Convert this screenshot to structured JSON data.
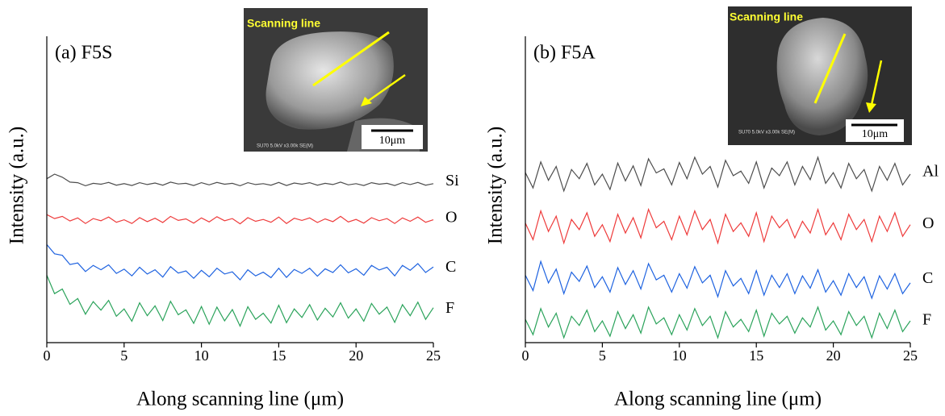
{
  "chart_data": [
    {
      "type": "line",
      "title": "(a) F5S",
      "xlabel": "Along scanning line (μm)",
      "ylabel": "Intensity (a.u.)",
      "xlim": [
        0,
        25
      ],
      "xticks": [
        0,
        5,
        10,
        15,
        20,
        25
      ],
      "ylim": [
        0,
        100
      ],
      "inset": {
        "title": "Scanning line",
        "scale_bar": "10μm",
        "caption": "SU70 5.0kV x3.00k SE(M)"
      },
      "x": [
        0,
        0.5,
        1,
        1.5,
        2,
        2.5,
        3,
        3.5,
        4,
        4.5,
        5,
        5.5,
        6,
        6.5,
        7,
        7.5,
        8,
        8.5,
        9,
        9.5,
        10,
        10.5,
        11,
        11.5,
        12,
        12.5,
        13,
        13.5,
        14,
        14.5,
        15,
        15.5,
        16,
        16.5,
        17,
        17.5,
        18,
        18.5,
        19,
        19.5,
        20,
        20.5,
        21,
        21.5,
        22,
        22.5,
        23,
        23.5,
        24,
        24.5,
        25
      ],
      "series": [
        {
          "name": "Si",
          "color": "#4d4d4d",
          "values": [
            53.5,
            55,
            54,
            52.4,
            52.2,
            51.2,
            52,
            51.7,
            52.3,
            51.4,
            51.9,
            51.3,
            52.2,
            51.6,
            52.1,
            51.4,
            52.4,
            51.8,
            52,
            51.3,
            52.2,
            51.5,
            52.3,
            51.7,
            52,
            51.2,
            52.2,
            51.6,
            51.9,
            51.4,
            52.3,
            51.3,
            52.1,
            51.7,
            52.2,
            51.4,
            52,
            51.6,
            52.4,
            51.5,
            51.9,
            51.3,
            52.2,
            51.7,
            52,
            51.3,
            52.2,
            51.6,
            52.3,
            51.4,
            51.9
          ]
        },
        {
          "name": "O",
          "color": "#ee3b3b",
          "values": [
            41.8,
            40.5,
            41.2,
            39.7,
            40.7,
            38.9,
            40.5,
            39.8,
            41,
            39.3,
            40.1,
            38.9,
            40.8,
            39.5,
            40.6,
            39.2,
            41.2,
            39.9,
            40.4,
            39,
            40.7,
            39.4,
            41.1,
            39.8,
            40.5,
            38.8,
            40.8,
            39.6,
            40.2,
            39.3,
            41,
            38.9,
            40.6,
            39.9,
            40.7,
            39.2,
            40.4,
            39.5,
            41.2,
            39.4,
            40.2,
            39,
            40.8,
            39.8,
            40.5,
            38.9,
            40.7,
            39.6,
            41,
            39.3,
            40.1
          ]
        },
        {
          "name": "C",
          "color": "#1f63e0",
          "values": [
            32,
            29,
            28.5,
            25.5,
            26,
            23.2,
            25.2,
            23.8,
            25.4,
            22.6,
            24,
            21.8,
            24.6,
            22.4,
            23.8,
            21.4,
            24.8,
            22.7,
            23.4,
            21,
            23.6,
            21.5,
            24.3,
            22.4,
            23.1,
            20.5,
            23.8,
            21.8,
            23,
            21.2,
            24.3,
            21.3,
            23.9,
            22.6,
            24.3,
            21.7,
            24.1,
            22.9,
            25.4,
            22.8,
            24.1,
            22,
            25.2,
            23.7,
            24.6,
            21.8,
            25.2,
            23.6,
            25.8,
            22.9,
            24.7
          ]
        },
        {
          "name": "F",
          "color": "#2ba35b",
          "values": [
            22,
            16,
            17.5,
            12.5,
            14.4,
            9.3,
            13.4,
            10.6,
            13.8,
            8.6,
            11,
            7,
            13,
            8.8,
            12,
            7.2,
            13.5,
            9.1,
            10.7,
            6.3,
            11.8,
            6,
            11.6,
            7.1,
            10.8,
            5.4,
            11.7,
            7.6,
            9.6,
            6.4,
            12.2,
            6.5,
            11,
            8.2,
            12.4,
            7.4,
            11.2,
            8.4,
            13,
            8,
            11,
            7,
            12.8,
            9.3,
            11.6,
            6.6,
            12.4,
            8.8,
            13.2,
            7.6,
            11.4
          ]
        }
      ]
    },
    {
      "type": "line",
      "title": "(b) F5A",
      "xlabel": "Along scanning line (μm)",
      "ylabel": "Intensity (a.u.)",
      "xlim": [
        0,
        25
      ],
      "xticks": [
        0,
        5,
        10,
        15,
        20,
        25
      ],
      "ylim": [
        0,
        100
      ],
      "inset": {
        "title": "Scanning line",
        "scale_bar": "10μm",
        "caption": "SU70 5.0kV x3.00k SE(M)"
      },
      "x": [
        0,
        0.5,
        1,
        1.5,
        2,
        2.5,
        3,
        3.5,
        4,
        4.5,
        5,
        5.5,
        6,
        6.5,
        7,
        7.5,
        8,
        8.5,
        9,
        9.5,
        10,
        10.5,
        11,
        11.5,
        12,
        12.5,
        13,
        13.5,
        14,
        14.5,
        15,
        15.5,
        16,
        16.5,
        17,
        17.5,
        18,
        18.5,
        19,
        19.5,
        20,
        20.5,
        21,
        21.5,
        22,
        22.5,
        23,
        23.5,
        24,
        24.5,
        25
      ],
      "series": [
        {
          "name": "Al",
          "color": "#4d4d4d",
          "values": [
            55.5,
            50.5,
            59,
            53,
            57.5,
            49.5,
            56.5,
            53.5,
            58.5,
            51.5,
            55,
            50,
            58.6,
            52.8,
            57.7,
            51.3,
            60,
            55.4,
            56.7,
            51.5,
            58.8,
            53.5,
            60.5,
            55,
            57.5,
            50.8,
            59.5,
            54.5,
            56,
            52,
            59,
            50.5,
            57,
            54.5,
            59,
            51.5,
            57.5,
            53.2,
            60.5,
            52,
            55.5,
            50.5,
            58.5,
            53.5,
            56.5,
            49.5,
            57.5,
            53,
            58.5,
            51.5,
            55
          ]
        },
        {
          "name": "O",
          "color": "#ee3b3b",
          "values": [
            39,
            33.6,
            43,
            36.3,
            41.3,
            32.5,
            40.2,
            36.9,
            42.4,
            34.7,
            38.5,
            33,
            41.9,
            35.8,
            40.8,
            34.2,
            43.5,
            37.5,
            39.6,
            33.6,
            41.3,
            35.2,
            43,
            36.9,
            40.2,
            32.5,
            41.9,
            36.3,
            39.1,
            34.7,
            42.4,
            33,
            41.3,
            37.5,
            40.2,
            34.2,
            39.6,
            35.8,
            43.5,
            35.2,
            39.1,
            33.6,
            41.9,
            36.9,
            40.2,
            33,
            41.3,
            36.3,
            42.4,
            34.7,
            38.5
          ]
        },
        {
          "name": "C",
          "color": "#1f63e0",
          "values": [
            22,
            17,
            26.5,
            19.5,
            24,
            16,
            23,
            20,
            25,
            18,
            21.5,
            16.5,
            24.5,
            19,
            23.5,
            17.5,
            25.8,
            20.5,
            22,
            16.5,
            22.5,
            17.8,
            24.8,
            19.5,
            22,
            15,
            23.5,
            18.5,
            21,
            16,
            23.5,
            15.5,
            22,
            18,
            22.5,
            16,
            21.8,
            17.8,
            23.8,
            16.5,
            20.2,
            15.5,
            22.5,
            18,
            21.5,
            14.5,
            21.8,
            17.5,
            22.5,
            16,
            19.5
          ]
        },
        {
          "name": "F",
          "color": "#2ba35b",
          "values": [
            7.6,
            2.6,
            11.1,
            5.1,
            9.6,
            1.6,
            8.6,
            5.6,
            10.6,
            3.6,
            7.1,
            2.1,
            10.1,
            4.6,
            9.1,
            3.1,
            11.6,
            6.1,
            8.1,
            2.6,
            9.1,
            4.1,
            11.1,
            5.6,
            8.6,
            1.6,
            10.1,
            5.1,
            7.6,
            3.6,
            10.6,
            2.1,
            9.6,
            6.1,
            8.6,
            3.1,
            8.1,
            5.1,
            11.6,
            4.1,
            7.1,
            2.6,
            10.1,
            5.6,
            8.6,
            1.6,
            9.6,
            4.6,
            10.6,
            3.6,
            7.1
          ]
        }
      ]
    }
  ]
}
